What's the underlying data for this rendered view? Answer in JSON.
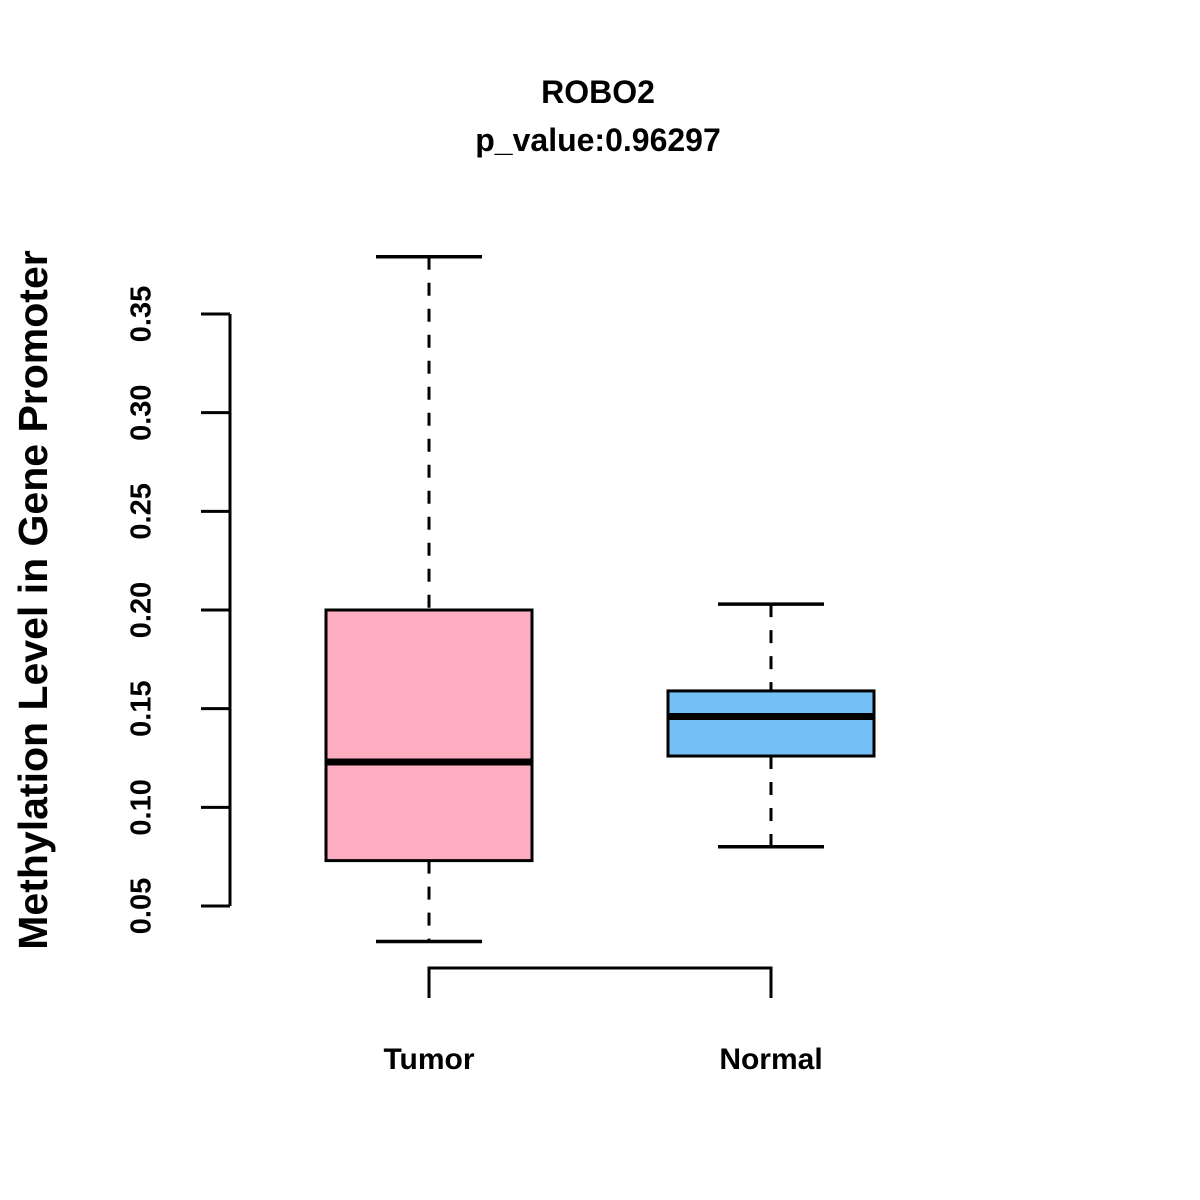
{
  "figure": {
    "background_color": "#ffffff",
    "foreground_color": "#000000"
  },
  "chart_data": {
    "type": "boxplot",
    "title": "ROBO2",
    "subtitle": "p_value:0.96297",
    "ylabel": "Methylation Level in Gene Promoter",
    "xlabel": "",
    "categories": [
      "Tumor",
      "Normal"
    ],
    "series": [
      {
        "name": "Tumor",
        "lower_whisker": 0.032,
        "q1": 0.073,
        "median": 0.123,
        "q3": 0.2,
        "upper_whisker": 0.379,
        "fill_color": "#FCAEC0"
      },
      {
        "name": "Normal",
        "lower_whisker": 0.08,
        "q1": 0.126,
        "median": 0.146,
        "q3": 0.159,
        "upper_whisker": 0.203,
        "fill_color": "#74BFF5"
      }
    ],
    "y_ticks": [
      0.05,
      0.1,
      0.15,
      0.2,
      0.25,
      0.3,
      0.35
    ],
    "y_tick_labels": [
      "0.05",
      "0.10",
      "0.15",
      "0.20",
      "0.25",
      "0.30",
      "0.35"
    ],
    "ylim": [
      0.032,
      0.379
    ],
    "grid": false,
    "legend": "none",
    "tick_label_rotation_deg": 90,
    "whisker_style": "dashed",
    "box_border_color": "#000000",
    "median_color": "#000000"
  }
}
